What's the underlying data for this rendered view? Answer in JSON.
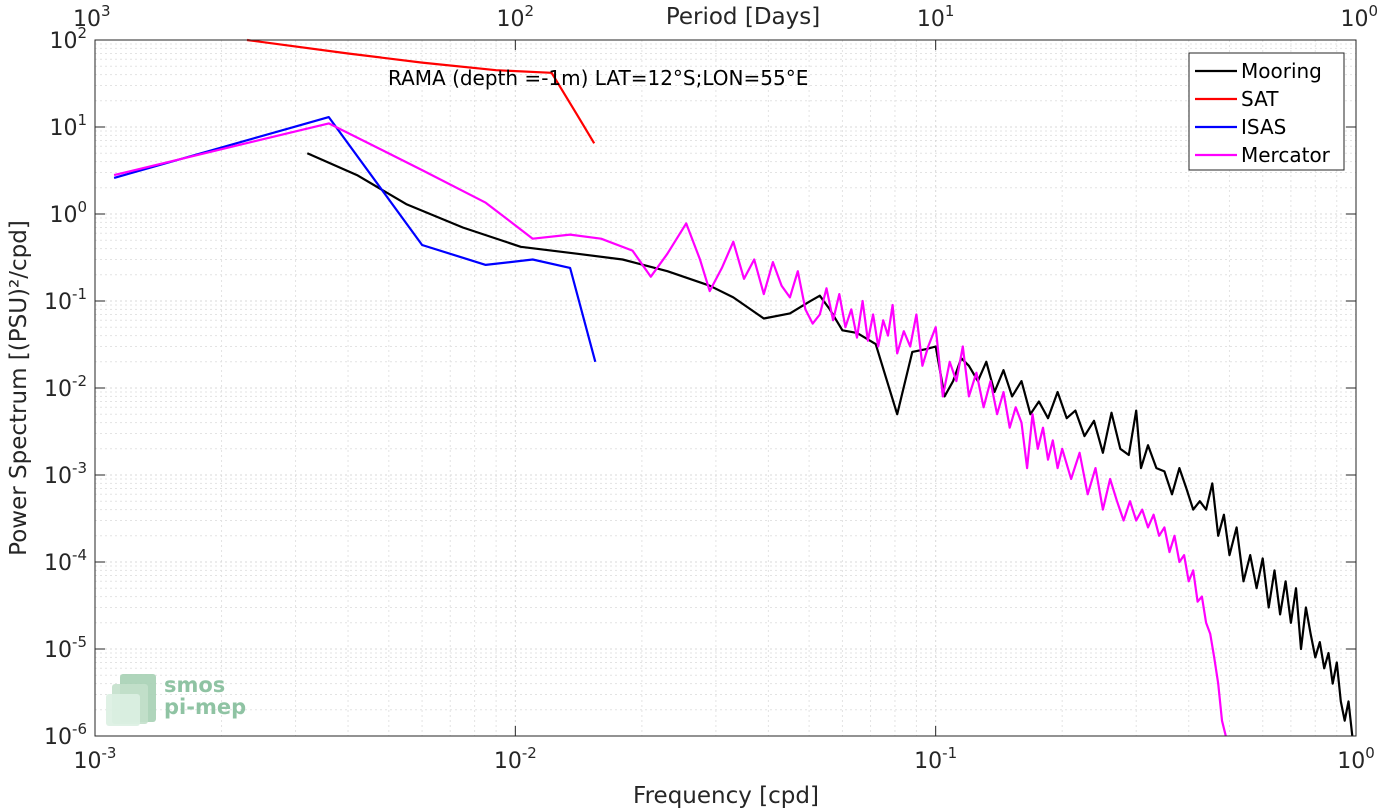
{
  "chart_data": {
    "type": "line",
    "title": "RAMA (depth =-1m) LAT=12°S;LON=55°E",
    "xlabel": "Frequency [cpd]",
    "ylabel": "Power Spectrum [(PSU)²/cpd]",
    "top_xlabel": "Period [Days]",
    "x_scale": "log",
    "y_scale": "log",
    "xlim": [
      0.001,
      1
    ],
    "ylim": [
      1e-06,
      100
    ],
    "x_ticks": [
      {
        "base": "10",
        "exp": "-3",
        "value": 0.001
      },
      {
        "base": "10",
        "exp": "-2",
        "value": 0.01
      },
      {
        "base": "10",
        "exp": "-1",
        "value": 0.1
      },
      {
        "base": "10",
        "exp": "0",
        "value": 1
      }
    ],
    "y_ticks": [
      {
        "base": "10",
        "exp": "2",
        "value": 100
      },
      {
        "base": "10",
        "exp": "1",
        "value": 10
      },
      {
        "base": "10",
        "exp": "0",
        "value": 1
      },
      {
        "base": "10",
        "exp": "-1",
        "value": 0.1
      },
      {
        "base": "10",
        "exp": "-2",
        "value": 0.01
      },
      {
        "base": "10",
        "exp": "-3",
        "value": 0.001
      },
      {
        "base": "10",
        "exp": "-4",
        "value": 0.0001
      },
      {
        "base": "10",
        "exp": "-5",
        "value": 1e-05
      },
      {
        "base": "10",
        "exp": "-6",
        "value": 1e-06
      }
    ],
    "top_ticks": [
      {
        "base": "10",
        "exp": "3",
        "value": 1000
      },
      {
        "base": "10",
        "exp": "2",
        "value": 100
      },
      {
        "base": "10",
        "exp": "1",
        "value": 10
      },
      {
        "base": "10",
        "exp": "0",
        "value": 1
      }
    ],
    "grid": true,
    "legend_position": "top-right",
    "series": [
      {
        "name": "Mooring",
        "color": "#000000",
        "x": [
          0.0032,
          0.0042,
          0.0055,
          0.0075,
          0.0103,
          0.014,
          0.018,
          0.023,
          0.029,
          0.033,
          0.039,
          0.045,
          0.05,
          0.053,
          0.056,
          0.06,
          0.065,
          0.072,
          0.081,
          0.088,
          0.095,
          0.1,
          0.105,
          0.11,
          0.115,
          0.12,
          0.126,
          0.132,
          0.138,
          0.145,
          0.152,
          0.16,
          0.168,
          0.176,
          0.185,
          0.195,
          0.205,
          0.215,
          0.226,
          0.238,
          0.25,
          0.262,
          0.275,
          0.288,
          0.3,
          0.308,
          0.32,
          0.335,
          0.35,
          0.365,
          0.38,
          0.395,
          0.41,
          0.425,
          0.44,
          0.455,
          0.47,
          0.485,
          0.5,
          0.52,
          0.54,
          0.56,
          0.58,
          0.6,
          0.62,
          0.64,
          0.66,
          0.68,
          0.7,
          0.72,
          0.74,
          0.76,
          0.78,
          0.8,
          0.82,
          0.84,
          0.86,
          0.88,
          0.9,
          0.92,
          0.94,
          0.96,
          0.98
        ],
        "y": [
          5.0,
          2.8,
          1.3,
          0.7,
          0.42,
          0.35,
          0.3,
          0.22,
          0.15,
          0.11,
          0.063,
          0.072,
          0.098,
          0.115,
          0.08,
          0.046,
          0.043,
          0.032,
          0.005,
          0.026,
          0.028,
          0.03,
          0.008,
          0.012,
          0.022,
          0.018,
          0.012,
          0.02,
          0.009,
          0.016,
          0.008,
          0.012,
          0.005,
          0.007,
          0.0045,
          0.009,
          0.0045,
          0.0055,
          0.0028,
          0.0042,
          0.0018,
          0.0052,
          0.002,
          0.0017,
          0.0055,
          0.0012,
          0.0022,
          0.0012,
          0.0011,
          0.0006,
          0.0012,
          0.0007,
          0.0004,
          0.0005,
          0.0004,
          0.0008,
          0.0002,
          0.00035,
          0.00012,
          0.00025,
          6e-05,
          0.00012,
          5e-05,
          0.00011,
          3e-05,
          8e-05,
          2.5e-05,
          6e-05,
          2e-05,
          5e-05,
          1e-05,
          3e-05,
          1.5e-05,
          8e-06,
          1.2e-05,
          6e-06,
          9e-06,
          4e-06,
          7e-06,
          2.5e-06,
          1.5e-06,
          2.5e-06,
          1e-06
        ]
      },
      {
        "name": "SAT",
        "color": "#ff0000",
        "x": [
          0.0023,
          0.004,
          0.006,
          0.009,
          0.0122,
          0.014,
          0.0154
        ],
        "y": [
          100,
          70,
          55,
          45,
          42,
          14,
          6.5
        ]
      },
      {
        "name": "ISAS",
        "color": "#0000ff",
        "x": [
          0.00111,
          0.0036,
          0.006,
          0.0085,
          0.011,
          0.0135,
          0.0155
        ],
        "y": [
          2.6,
          13,
          0.44,
          0.26,
          0.3,
          0.24,
          0.02
        ]
      },
      {
        "name": "Mercator",
        "color": "#ff00ff",
        "x": [
          0.00111,
          0.0036,
          0.006,
          0.0085,
          0.011,
          0.0135,
          0.016,
          0.019,
          0.021,
          0.023,
          0.0255,
          0.0275,
          0.029,
          0.031,
          0.033,
          0.035,
          0.037,
          0.039,
          0.041,
          0.043,
          0.045,
          0.047,
          0.049,
          0.051,
          0.053,
          0.055,
          0.057,
          0.059,
          0.061,
          0.063,
          0.065,
          0.067,
          0.069,
          0.071,
          0.073,
          0.075,
          0.077,
          0.079,
          0.081,
          0.084,
          0.087,
          0.09,
          0.093,
          0.096,
          0.1,
          0.104,
          0.108,
          0.112,
          0.116,
          0.12,
          0.125,
          0.13,
          0.135,
          0.14,
          0.145,
          0.15,
          0.155,
          0.16,
          0.165,
          0.17,
          0.175,
          0.18,
          0.185,
          0.19,
          0.195,
          0.2,
          0.21,
          0.22,
          0.23,
          0.24,
          0.25,
          0.26,
          0.27,
          0.28,
          0.29,
          0.3,
          0.31,
          0.32,
          0.33,
          0.34,
          0.35,
          0.36,
          0.37,
          0.38,
          0.39,
          0.4,
          0.41,
          0.42,
          0.43,
          0.44,
          0.45,
          0.46,
          0.47,
          0.48,
          0.49
        ],
        "y": [
          2.8,
          11,
          3.2,
          1.35,
          0.52,
          0.58,
          0.52,
          0.38,
          0.19,
          0.35,
          0.78,
          0.3,
          0.13,
          0.24,
          0.48,
          0.18,
          0.3,
          0.12,
          0.28,
          0.15,
          0.11,
          0.22,
          0.08,
          0.055,
          0.07,
          0.14,
          0.06,
          0.12,
          0.05,
          0.08,
          0.038,
          0.1,
          0.035,
          0.07,
          0.03,
          0.06,
          0.04,
          0.09,
          0.025,
          0.045,
          0.03,
          0.07,
          0.018,
          0.03,
          0.05,
          0.008,
          0.02,
          0.012,
          0.03,
          0.008,
          0.015,
          0.006,
          0.012,
          0.005,
          0.009,
          0.0035,
          0.006,
          0.004,
          0.0012,
          0.005,
          0.002,
          0.0035,
          0.0015,
          0.0025,
          0.0012,
          0.002,
          0.0009,
          0.0018,
          0.0006,
          0.0012,
          0.0004,
          0.0009,
          0.0005,
          0.0003,
          0.0005,
          0.0003,
          0.0004,
          0.00025,
          0.00035,
          0.0002,
          0.00025,
          0.00013,
          0.0002,
          0.0001,
          0.00012,
          6e-05,
          8e-05,
          3.5e-05,
          4e-05,
          2e-05,
          1.5e-05,
          8e-06,
          4e-06,
          1.5e-06,
          1e-06
        ]
      }
    ]
  },
  "logo": {
    "line1": "smos",
    "line2": "pi-mep"
  }
}
